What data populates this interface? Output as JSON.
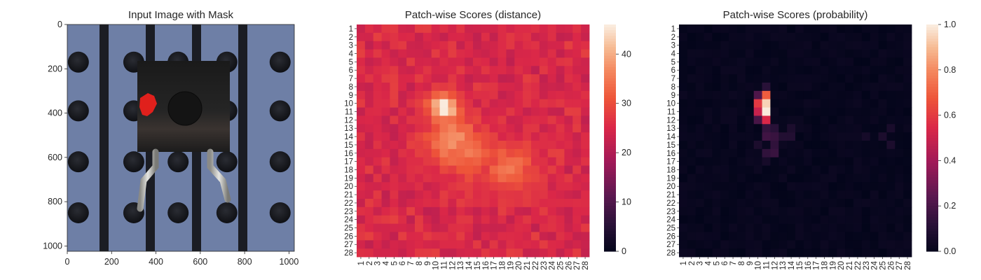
{
  "chart_data": [
    {
      "type": "image",
      "title": "Input Image with Mask",
      "xticks": [
        0,
        200,
        400,
        600,
        800,
        1000
      ],
      "yticks": [
        0,
        200,
        400,
        600,
        800,
        1000
      ],
      "xlim": [
        0,
        1024
      ],
      "ylim": [
        1024,
        0
      ],
      "background_color": "#6e7fa6",
      "mask_color": "#e0201c",
      "mask_region": {
        "x": [
          320,
          400
        ],
        "y": [
          305,
          410
        ]
      }
    },
    {
      "type": "heatmap",
      "title": "Patch-wise Scores (distance)",
      "labels": [
        "1",
        "2",
        "3",
        "4",
        "5",
        "6",
        "7",
        "8",
        "9",
        "10",
        "11",
        "12",
        "13",
        "14",
        "15",
        "16",
        "17",
        "18",
        "19",
        "20",
        "21",
        "22",
        "23",
        "24",
        "25",
        "26",
        "27",
        "28"
      ],
      "colorbar": {
        "min": 0,
        "max": 46,
        "ticks": [
          0,
          10,
          20,
          30,
          40
        ]
      },
      "colormap": "rocket",
      "background_score": 24,
      "hotspots": [
        {
          "row": 10.5,
          "col": 11,
          "peak": 46
        },
        {
          "row": 14.5,
          "col": 12,
          "peak": 37
        },
        {
          "row": 18,
          "col": 19,
          "peak": 34
        },
        {
          "row": 16,
          "col": 14,
          "peak": 34
        }
      ]
    },
    {
      "type": "heatmap",
      "title": "Patch-wise Scores (probability)",
      "labels": [
        "1",
        "2",
        "3",
        "4",
        "5",
        "6",
        "7",
        "8",
        "9",
        "10",
        "11",
        "12",
        "13",
        "14",
        "15",
        "16",
        "17",
        "18",
        "19",
        "20",
        "21",
        "22",
        "23",
        "24",
        "25",
        "26",
        "27",
        "28"
      ],
      "colorbar": {
        "min": 0.0,
        "max": 1.0,
        "ticks": [
          "0.0",
          "0.2",
          "0.4",
          "0.6",
          "0.8",
          "1.0"
        ]
      },
      "colormap": "rocket",
      "hot_cells": [
        {
          "row": 10,
          "col": 11,
          "value": 0.95
        },
        {
          "row": 11,
          "col": 11,
          "value": 1.0
        },
        {
          "row": 9,
          "col": 11,
          "value": 0.7
        },
        {
          "row": 12,
          "col": 11,
          "value": 0.55
        },
        {
          "row": 10,
          "col": 10,
          "value": 0.6
        },
        {
          "row": 11,
          "col": 10,
          "value": 0.5
        },
        {
          "row": 9,
          "col": 10,
          "value": 0.22
        },
        {
          "row": 12,
          "col": 10,
          "value": 0.2
        },
        {
          "row": 8,
          "col": 11,
          "value": 0.12
        },
        {
          "row": 13,
          "col": 11,
          "value": 0.15
        },
        {
          "row": 14,
          "col": 11,
          "value": 0.18
        },
        {
          "row": 14,
          "col": 12,
          "value": 0.16
        },
        {
          "row": 15,
          "col": 12,
          "value": 0.14
        },
        {
          "row": 16,
          "col": 11,
          "value": 0.14
        },
        {
          "row": 16,
          "col": 12,
          "value": 0.16
        },
        {
          "row": 13,
          "col": 12,
          "value": 0.12
        },
        {
          "row": 14,
          "col": 13,
          "value": 0.1
        },
        {
          "row": 14,
          "col": 14,
          "value": 0.1
        },
        {
          "row": 13,
          "col": 14,
          "value": 0.08
        },
        {
          "row": 15,
          "col": 10,
          "value": 0.08
        },
        {
          "row": 17,
          "col": 11,
          "value": 0.06
        },
        {
          "row": 14,
          "col": 25,
          "value": 0.08
        },
        {
          "row": 15,
          "col": 26,
          "value": 0.08
        },
        {
          "row": 13,
          "col": 26,
          "value": 0.07
        },
        {
          "row": 14,
          "col": 23,
          "value": 0.06
        }
      ]
    }
  ]
}
